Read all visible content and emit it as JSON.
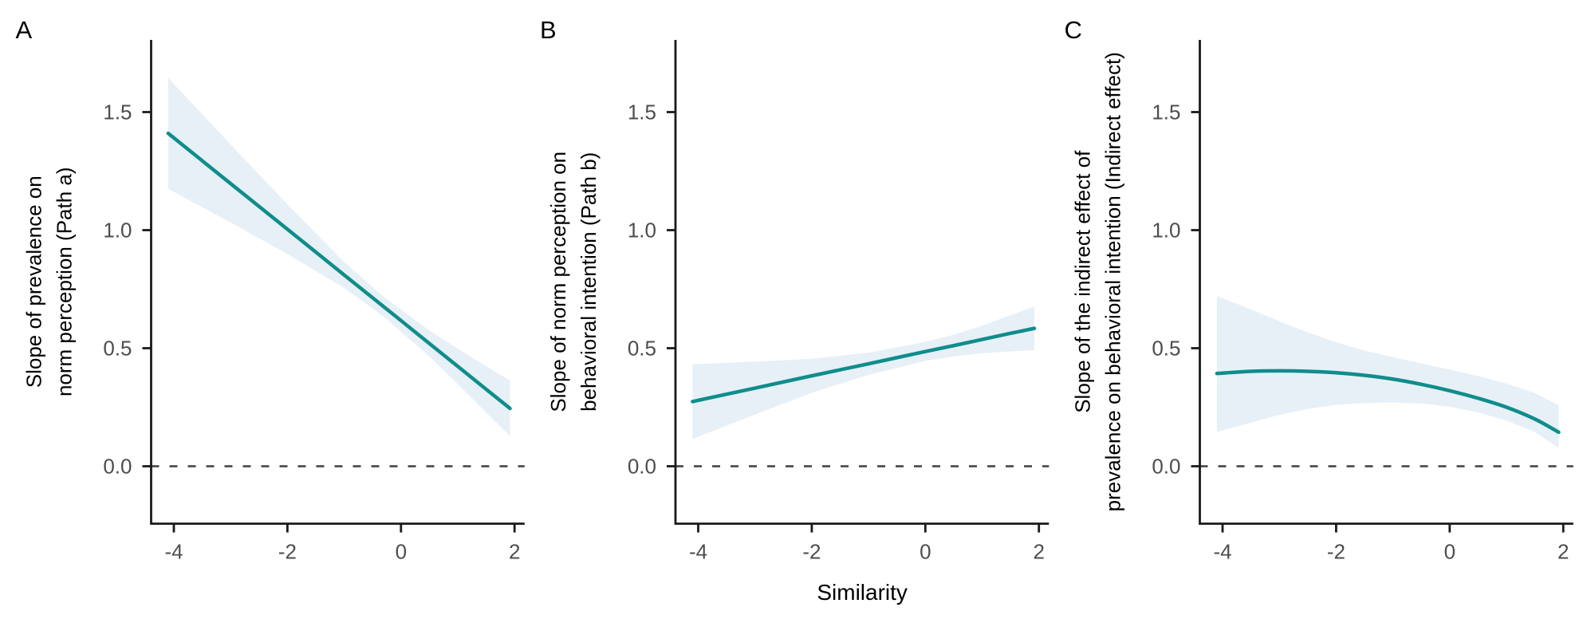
{
  "figure": {
    "background": "#FFFFFF",
    "line_color": "#0F8D8B",
    "band_color": "#E7F0F7",
    "zero_line_color": "#3F3F3F",
    "axis_color": "#1A1A1A",
    "tick_label_color": "#4D4D4D",
    "text_color": "#000000",
    "xlabel": "Similarity"
  },
  "chart_data": [
    {
      "type": "line",
      "panel_label": "A",
      "ylabel_lines": [
        "Slope of prevalence on",
        "norm perception (Path a)"
      ],
      "xlabel": "Similarity",
      "x_ticks": [
        -4,
        -2,
        0,
        2
      ],
      "x_tick_labels": [
        "-4",
        "-2",
        "0",
        "2"
      ],
      "y_ticks": [
        0.0,
        0.5,
        1.0,
        1.5
      ],
      "y_tick_labels": [
        "0.0",
        "0.5",
        "1.0",
        "1.5"
      ],
      "xlim": [
        -4.4,
        2.18
      ],
      "ylim": [
        -0.24,
        1.81
      ],
      "zero_reference_line": 0,
      "grid": false,
      "legend": "none",
      "x": [
        -4.1,
        -3.0,
        -2.0,
        -1.0,
        -0.3,
        0.5,
        1.0,
        1.5,
        1.92
      ],
      "y": [
        1.41,
        1.197,
        1.004,
        0.81,
        0.675,
        0.52,
        0.423,
        0.326,
        0.245
      ],
      "ci_upper": [
        1.645,
        1.362,
        1.109,
        0.865,
        0.717,
        0.575,
        0.498,
        0.424,
        0.363
      ],
      "ci_lower": [
        1.175,
        1.032,
        0.899,
        0.755,
        0.633,
        0.465,
        0.348,
        0.228,
        0.127
      ]
    },
    {
      "type": "line",
      "panel_label": "B",
      "ylabel_lines": [
        "Slope of norm perception on",
        "behavioral intention (Path b)"
      ],
      "xlabel": "Similarity",
      "x_ticks": [
        -4,
        -2,
        0,
        2
      ],
      "x_tick_labels": [
        "-4",
        "-2",
        "0",
        "2"
      ],
      "y_ticks": [
        0.0,
        0.5,
        1.0,
        1.5
      ],
      "y_tick_labels": [
        "0.0",
        "0.5",
        "1.0",
        "1.5"
      ],
      "xlim": [
        -4.4,
        2.18
      ],
      "ylim": [
        -0.24,
        1.81
      ],
      "zero_reference_line": 0,
      "grid": false,
      "legend": "none",
      "x": [
        -4.1,
        -3.0,
        -2.0,
        -1.0,
        0.0,
        0.5,
        1.0,
        1.5,
        1.92
      ],
      "y": [
        0.274,
        0.331,
        0.383,
        0.434,
        0.486,
        0.511,
        0.537,
        0.563,
        0.584
      ],
      "ci_upper": [
        0.432,
        0.443,
        0.455,
        0.481,
        0.526,
        0.557,
        0.595,
        0.64,
        0.676
      ],
      "ci_lower": [
        0.116,
        0.219,
        0.311,
        0.387,
        0.446,
        0.465,
        0.479,
        0.486,
        0.492
      ]
    },
    {
      "type": "line",
      "panel_label": "C",
      "ylabel_lines": [
        "Slope of the indirect effect of",
        "prevalence on behavioral intention (Indirect effect)"
      ],
      "xlabel": "Similarity",
      "x_ticks": [
        -4,
        -2,
        0,
        2
      ],
      "x_tick_labels": [
        "-4",
        "-2",
        "0",
        "2"
      ],
      "y_ticks": [
        0.0,
        0.5,
        1.0,
        1.5
      ],
      "y_tick_labels": [
        "0.0",
        "0.5",
        "1.0",
        "1.5"
      ],
      "xlim": [
        -4.4,
        2.18
      ],
      "ylim": [
        -0.24,
        1.81
      ],
      "zero_reference_line": 0,
      "grid": false,
      "legend": "none",
      "x": [
        -4.1,
        -3.5,
        -3.0,
        -2.5,
        -2.0,
        -1.5,
        -1.0,
        -0.5,
        0.0,
        0.5,
        1.0,
        1.5,
        1.92
      ],
      "y": [
        0.393,
        0.402,
        0.404,
        0.402,
        0.396,
        0.385,
        0.369,
        0.347,
        0.32,
        0.288,
        0.25,
        0.2,
        0.144
      ],
      "ci_upper": [
        0.721,
        0.665,
        0.614,
        0.567,
        0.525,
        0.49,
        0.462,
        0.435,
        0.41,
        0.382,
        0.35,
        0.31,
        0.258
      ],
      "ci_lower": [
        0.145,
        0.185,
        0.218,
        0.243,
        0.26,
        0.268,
        0.27,
        0.266,
        0.252,
        0.228,
        0.193,
        0.145,
        0.077
      ]
    }
  ]
}
